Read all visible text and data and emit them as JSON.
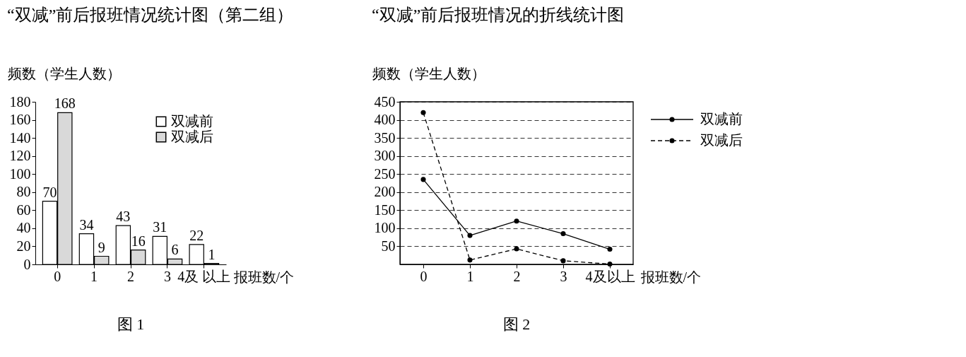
{
  "chart_data": [
    {
      "type": "bar",
      "title": "“双减”前后报班情况统计图（第二组）",
      "xlabel": "报班数/个",
      "ylabel": "频数（学生人数）",
      "categories": [
        "0",
        "1",
        "2",
        "3",
        "4及\n以上"
      ],
      "series": [
        {
          "name": "双减前",
          "color": "#ffffff",
          "values": [
            70,
            34,
            43,
            31,
            22
          ]
        },
        {
          "name": "双减后",
          "color": "#d9d9d9",
          "values": [
            168,
            9,
            16,
            6,
            1
          ]
        }
      ],
      "ylim": [
        0,
        180
      ],
      "yticks": [
        0,
        20,
        40,
        60,
        80,
        100,
        120,
        140,
        160,
        180
      ],
      "data_labels": true,
      "legend": "top right",
      "grid": false,
      "annotations": [
        "图 1"
      ]
    },
    {
      "type": "line",
      "title": "“双减”前后报班情况的折线统计图",
      "xlabel": "报班数/个",
      "ylabel": "频数（学生人数）",
      "categories": [
        "0",
        "1",
        "2",
        "3",
        "4及以上"
      ],
      "series": [
        {
          "name": "双减前",
          "color": "#000000",
          "line_style": "solid",
          "values": [
            235,
            80,
            120,
            85,
            42
          ]
        },
        {
          "name": "双减后",
          "color": "#000000",
          "line_style": "dashed",
          "values": [
            420,
            12,
            43,
            10,
            1
          ]
        }
      ],
      "ylim": [
        0,
        450
      ],
      "yticks": [
        50,
        100,
        150,
        200,
        250,
        300,
        350,
        400,
        450
      ],
      "grid": "y",
      "marker": "circle",
      "legend": "right",
      "annotations": [
        "图 2"
      ]
    }
  ]
}
